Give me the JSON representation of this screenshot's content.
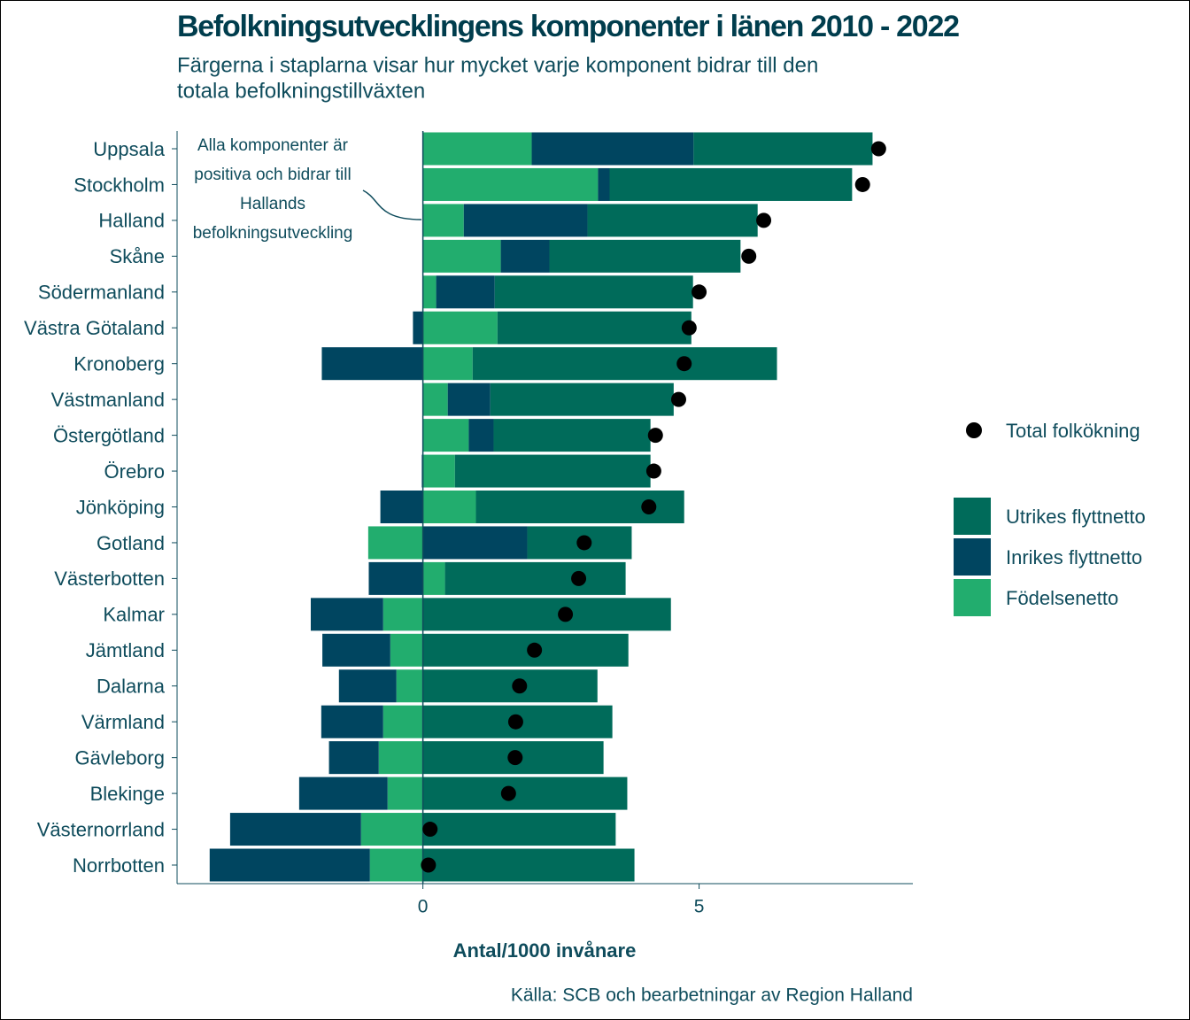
{
  "chart_data": {
    "type": "diverging-stacked-bar",
    "title": "Befolkningsutvecklingens komponenter i länen 2010 - 2022",
    "subtitle": [
      "Färgerna i staplarna visar hur mycket varje komponent bidrar till den",
      "totala befolkningstillväxten"
    ],
    "x_label": "Antal/1000 invånare",
    "source": "Källa: SCB och bearbetningar av Region Halland",
    "annotation": [
      "Alla komponenter är",
      "positiva och bidrar till",
      "Hallands",
      "befolkningsutveckling"
    ],
    "categories": [
      "Uppsala",
      "Stockholm",
      "Halland",
      "Skåne",
      "Södermanland",
      "Västra Götaland",
      "Kronoberg",
      "Västmanland",
      "Östergötland",
      "Örebro",
      "Jönköping",
      "Gotland",
      "Västerbotten",
      "Kalmar",
      "Jämtland",
      "Dalarna",
      "Värmland",
      "Gävleborg",
      "Blekinge",
      "Västernorrland",
      "Norrbotten"
    ],
    "series": [
      {
        "name": "Utrikes flyttnetto",
        "color": "#006b5a",
        "values": [
          3.24,
          4.39,
          3.08,
          3.46,
          3.59,
          3.51,
          5.51,
          3.32,
          2.84,
          3.54,
          3.77,
          1.89,
          3.27,
          4.49,
          3.72,
          3.16,
          3.43,
          3.27,
          3.7,
          3.49,
          3.83
        ]
      },
      {
        "name": "Inrikes flyttnetto",
        "color": "#004560",
        "values": [
          2.93,
          0.21,
          2.24,
          0.88,
          1.06,
          -0.18,
          -1.83,
          0.77,
          0.45,
          -0.02,
          -0.77,
          1.89,
          -0.98,
          -1.31,
          -1.23,
          -1.04,
          -1.12,
          -0.9,
          -1.6,
          -2.37,
          -2.9
        ]
      },
      {
        "name": "Födelsenetto",
        "color": "#22ad6e",
        "values": [
          1.97,
          3.17,
          0.74,
          1.41,
          0.24,
          1.35,
          0.9,
          0.45,
          0.83,
          0.58,
          0.96,
          -0.99,
          0.4,
          -0.72,
          -0.59,
          -0.48,
          -0.72,
          -0.8,
          -0.64,
          -1.12,
          -0.96
        ]
      }
    ],
    "total": {
      "name": "Total folkökning",
      "color": "#000000",
      "values": [
        8.25,
        7.96,
        6.17,
        5.9,
        5.0,
        4.82,
        4.73,
        4.63,
        4.21,
        4.18,
        4.09,
        2.92,
        2.82,
        2.58,
        2.02,
        1.75,
        1.68,
        1.67,
        1.55,
        0.13,
        0.1
      ]
    },
    "xlim": [
      -4.45,
      8.87
    ],
    "xticks": [
      0,
      5
    ]
  }
}
